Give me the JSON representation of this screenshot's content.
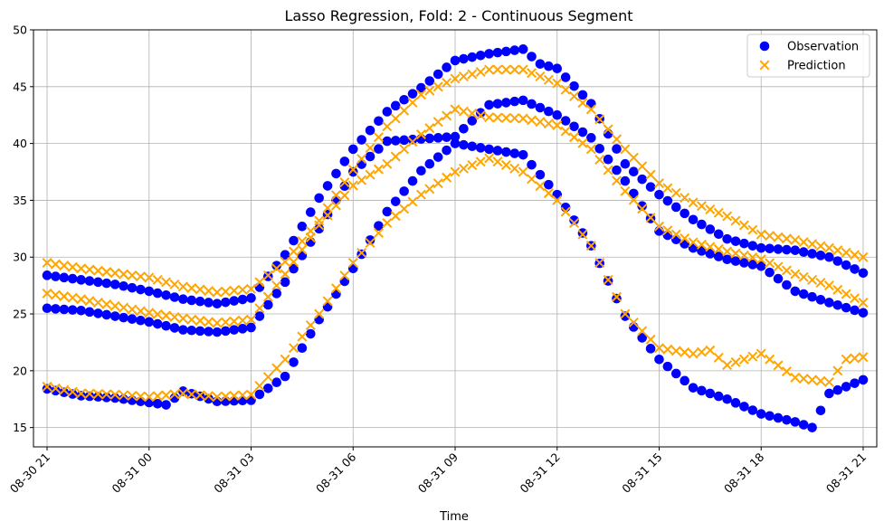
{
  "chart_data": {
    "type": "scatter",
    "title": "Lasso Regression, Fold: 2 - Continuous Segment",
    "xlabel": "Time",
    "ylabel": "",
    "x_unit": "hours since 08-30 21",
    "xlim": [
      -0.4,
      24.4
    ],
    "ylim": [
      13.3,
      50
    ],
    "grid": true,
    "legend_position": "top-right",
    "x_ticks": [
      {
        "hour": 0,
        "label": "08-30 21"
      },
      {
        "hour": 3,
        "label": "08-31 00"
      },
      {
        "hour": 6,
        "label": "08-31 03"
      },
      {
        "hour": 9,
        "label": "08-31 06"
      },
      {
        "hour": 12,
        "label": "08-31 09"
      },
      {
        "hour": 15,
        "label": "08-31 12"
      },
      {
        "hour": 18,
        "label": "08-31 15"
      },
      {
        "hour": 21,
        "label": "08-31 18"
      },
      {
        "hour": 24,
        "label": "08-31 21"
      }
    ],
    "y_ticks": [
      15,
      20,
      25,
      30,
      35,
      40,
      45,
      50
    ],
    "series": [
      {
        "name": "Observation",
        "marker": "circle",
        "color": "#0000ff",
        "curves": [
          [
            [
              0,
              28.4
            ],
            [
              1,
              28.0
            ],
            [
              2,
              27.6
            ],
            [
              3,
              27.0
            ],
            [
              4,
              26.3
            ],
            [
              5,
              25.9
            ],
            [
              6,
              26.4
            ],
            [
              7,
              30.2
            ],
            [
              8,
              35.2
            ],
            [
              9,
              39.5
            ],
            [
              10,
              42.8
            ],
            [
              11,
              44.9
            ],
            [
              12,
              47.3
            ],
            [
              13,
              47.9
            ],
            [
              14,
              48.3
            ],
            [
              14.5,
              47.0
            ],
            [
              15,
              46.6
            ],
            [
              16,
              43.5
            ],
            [
              17,
              38.2
            ],
            [
              18,
              35.5
            ],
            [
              19,
              33.3
            ],
            [
              20,
              31.6
            ],
            [
              21,
              30.8
            ],
            [
              22,
              30.6
            ],
            [
              23,
              30.0
            ],
            [
              24,
              28.6
            ]
          ],
          [
            [
              0,
              25.5
            ],
            [
              1,
              25.3
            ],
            [
              2,
              24.8
            ],
            [
              3,
              24.3
            ],
            [
              4,
              23.6
            ],
            [
              5,
              23.4
            ],
            [
              6,
              23.8
            ],
            [
              7,
              27.8
            ],
            [
              8,
              32.5
            ],
            [
              9,
              37.5
            ],
            [
              10,
              40.2
            ],
            [
              11,
              40.4
            ],
            [
              12,
              40.6
            ],
            [
              13,
              43.4
            ],
            [
              14,
              43.8
            ],
            [
              15,
              42.5
            ],
            [
              16,
              40.5
            ],
            [
              17,
              36.7
            ],
            [
              18,
              32.3
            ],
            [
              19,
              30.8
            ],
            [
              20,
              29.8
            ],
            [
              21,
              29.2
            ],
            [
              22,
              27.0
            ],
            [
              23,
              26.0
            ],
            [
              24,
              25.1
            ]
          ],
          [
            [
              0,
              18.4
            ],
            [
              1,
              17.8
            ],
            [
              2,
              17.6
            ],
            [
              3,
              17.2
            ],
            [
              3.5,
              17.0
            ],
            [
              4,
              18.2
            ],
            [
              5,
              17.3
            ],
            [
              6,
              17.4
            ],
            [
              7,
              19.5
            ],
            [
              8,
              24.5
            ],
            [
              9,
              29.0
            ],
            [
              10,
              34.0
            ],
            [
              11,
              37.6
            ],
            [
              12,
              40.0
            ],
            [
              13,
              39.5
            ],
            [
              14,
              39.0
            ],
            [
              15,
              35.5
            ],
            [
              16,
              31.0
            ],
            [
              17,
              24.8
            ],
            [
              18,
              21.0
            ],
            [
              19,
              18.5
            ],
            [
              20,
              17.5
            ],
            [
              21,
              16.2
            ],
            [
              22,
              15.5
            ],
            [
              22.5,
              15.0
            ],
            [
              23,
              18.0
            ],
            [
              24,
              19.2
            ]
          ]
        ]
      },
      {
        "name": "Prediction",
        "marker": "x",
        "color": "#ffa500",
        "curves": [
          [
            [
              0,
              29.5
            ],
            [
              1,
              29.0
            ],
            [
              2,
              28.6
            ],
            [
              3,
              28.2
            ],
            [
              4,
              27.4
            ],
            [
              5,
              26.9
            ],
            [
              6,
              27.2
            ],
            [
              7,
              29.6
            ],
            [
              8,
              33.2
            ],
            [
              9,
              37.7
            ],
            [
              10,
              41.5
            ],
            [
              11,
              44.3
            ],
            [
              12,
              45.7
            ],
            [
              13,
              46.5
            ],
            [
              14,
              46.5
            ],
            [
              15,
              45.3
            ],
            [
              16,
              43.0
            ],
            [
              17,
              39.5
            ],
            [
              18,
              36.5
            ],
            [
              19,
              34.8
            ],
            [
              20,
              33.6
            ],
            [
              21,
              32.0
            ],
            [
              22,
              31.5
            ],
            [
              23,
              30.8
            ],
            [
              24,
              30.0
            ]
          ],
          [
            [
              0,
              26.8
            ],
            [
              1,
              26.3
            ],
            [
              2,
              25.7
            ],
            [
              3,
              25.1
            ],
            [
              4,
              24.6
            ],
            [
              5,
              24.2
            ],
            [
              6,
              24.5
            ],
            [
              7,
              28.5
            ],
            [
              8,
              32.8
            ],
            [
              9,
              36.3
            ],
            [
              10,
              38.2
            ],
            [
              11,
              40.8
            ],
            [
              12,
              43.0
            ],
            [
              13,
              42.3
            ],
            [
              14,
              42.2
            ],
            [
              15,
              41.6
            ],
            [
              16,
              39.5
            ],
            [
              17,
              35.8
            ],
            [
              18,
              32.7
            ],
            [
              19,
              31.3
            ],
            [
              20,
              30.5
            ],
            [
              21,
              29.8
            ],
            [
              22,
              28.5
            ],
            [
              23,
              27.5
            ],
            [
              24,
              26.0
            ]
          ],
          [
            [
              0,
              18.6
            ],
            [
              1,
              18.0
            ],
            [
              2,
              17.9
            ],
            [
              3,
              17.7
            ],
            [
              4,
              18.0
            ],
            [
              5,
              17.7
            ],
            [
              6,
              17.9
            ],
            [
              7,
              21.0
            ],
            [
              8,
              25.0
            ],
            [
              9,
              29.5
            ],
            [
              10,
              33.0
            ],
            [
              11,
              35.5
            ],
            [
              12,
              37.5
            ],
            [
              13,
              38.7
            ],
            [
              14,
              37.5
            ],
            [
              15,
              35.0
            ],
            [
              16,
              31.0
            ],
            [
              17,
              25.0
            ],
            [
              18,
              22.0
            ],
            [
              19,
              21.5
            ],
            [
              19.5,
              21.8
            ],
            [
              20,
              20.5
            ],
            [
              21,
              21.5
            ],
            [
              21.3,
              20.9
            ],
            [
              22,
              19.4
            ],
            [
              23,
              19.0
            ],
            [
              23.5,
              21.0
            ],
            [
              24,
              21.2
            ]
          ]
        ]
      }
    ]
  }
}
